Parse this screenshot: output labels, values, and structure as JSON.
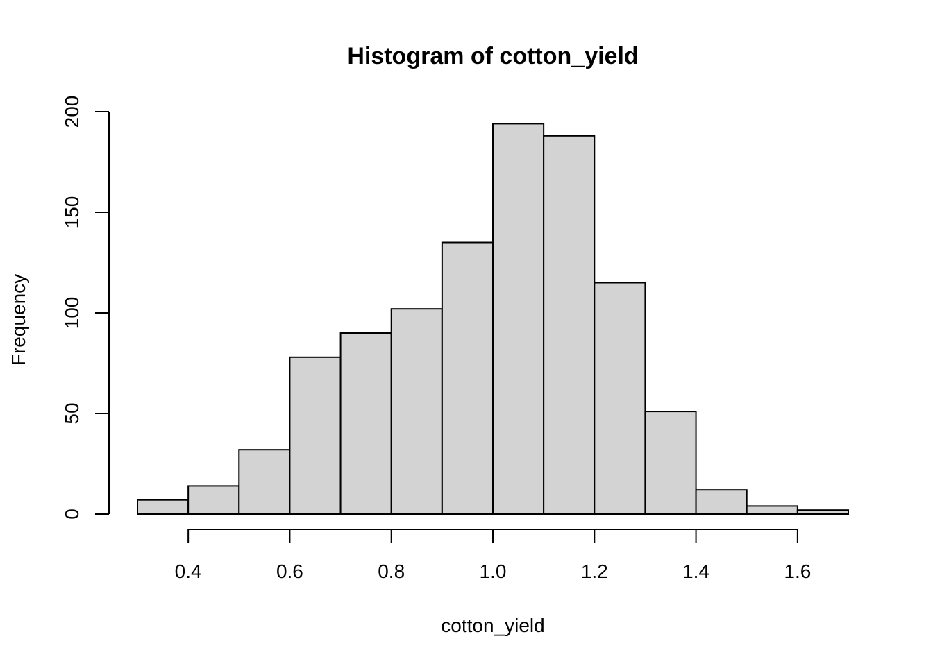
{
  "chart_data": {
    "type": "bar",
    "title": "Histogram of cotton_yield",
    "xlabel": "cotton_yield",
    "ylabel": "Frequency",
    "bins": [
      {
        "from": 0.3,
        "to": 0.4,
        "count": 7
      },
      {
        "from": 0.4,
        "to": 0.5,
        "count": 14
      },
      {
        "from": 0.5,
        "to": 0.6,
        "count": 32
      },
      {
        "from": 0.6,
        "to": 0.7,
        "count": 78
      },
      {
        "from": 0.7,
        "to": 0.8,
        "count": 90
      },
      {
        "from": 0.8,
        "to": 0.9,
        "count": 102
      },
      {
        "from": 0.9,
        "to": 1.0,
        "count": 135
      },
      {
        "from": 1.0,
        "to": 1.1,
        "count": 194
      },
      {
        "from": 1.1,
        "to": 1.2,
        "count": 188
      },
      {
        "from": 1.2,
        "to": 1.3,
        "count": 115
      },
      {
        "from": 1.3,
        "to": 1.4,
        "count": 51
      },
      {
        "from": 1.4,
        "to": 1.5,
        "count": 12
      },
      {
        "from": 1.5,
        "to": 1.6,
        "count": 4
      },
      {
        "from": 1.6,
        "to": 1.7,
        "count": 2
      }
    ],
    "xlim": [
      0.3,
      1.7
    ],
    "ylim": [
      0,
      200
    ],
    "x_ticks": [
      0.4,
      0.6,
      0.8,
      1.0,
      1.2,
      1.4,
      1.6
    ],
    "x_tick_labels": [
      "0.4",
      "0.6",
      "0.8",
      "1.0",
      "1.2",
      "1.4",
      "1.6"
    ],
    "y_ticks": [
      0,
      50,
      100,
      150,
      200
    ],
    "y_tick_labels": [
      "0",
      "50",
      "100",
      "150",
      "200"
    ],
    "grid": false,
    "legend": "none",
    "colors": {
      "bar_fill": "#d3d3d3",
      "bar_stroke": "#000000"
    }
  }
}
